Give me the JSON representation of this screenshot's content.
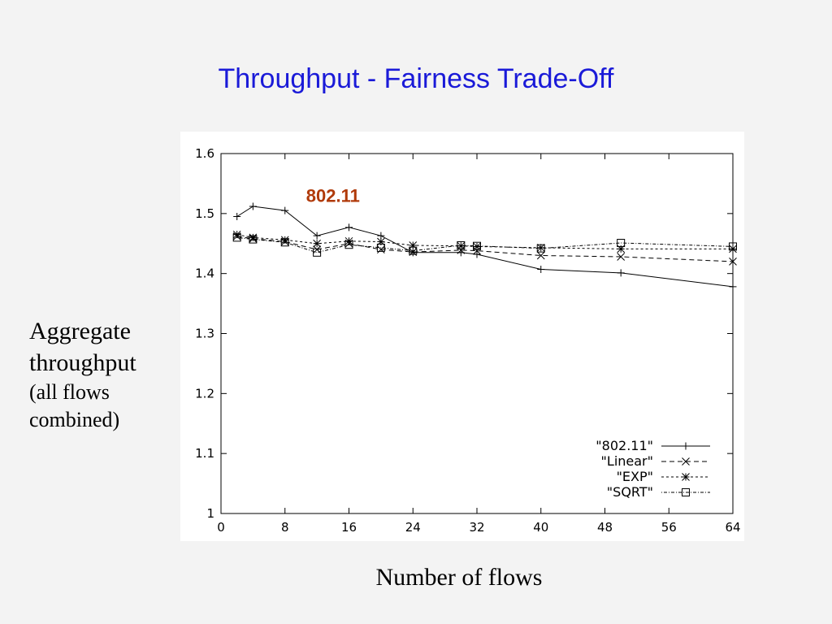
{
  "slide": {
    "title": "Throughput - Fairness Trade-Off",
    "ylabel_line1": "Aggregate",
    "ylabel_line2": "throughput",
    "ylabel_line3": "(all flows",
    "ylabel_line4": "combined)",
    "xlabel": "Number of flows"
  },
  "colors": {
    "title": "#1a1ad8",
    "annotation": "#b03a0a",
    "series": "#000000"
  },
  "chart_data": {
    "type": "line",
    "title": "",
    "xlabel": "Number of flows",
    "ylabel": "Aggregate throughput (all flows combined)",
    "xlim": [
      0,
      64
    ],
    "ylim": [
      1,
      1.6
    ],
    "xticks": [
      0,
      8,
      16,
      24,
      32,
      40,
      48,
      56,
      64
    ],
    "yticks": [
      1,
      1.1,
      1.2,
      1.3,
      1.4,
      1.5,
      1.6
    ],
    "xtick_labels": [
      "0",
      "8",
      "16",
      "24",
      "32",
      "40",
      "48",
      "56",
      "64"
    ],
    "ytick_labels": [
      "1",
      "1.1",
      "1.2",
      "1.3",
      "1.4",
      "1.5",
      "1.6"
    ],
    "grid": false,
    "legend_position": "bottom-right",
    "annotation": {
      "text": "802.11",
      "x": 14,
      "y": 1.53
    },
    "series": [
      {
        "name": "\"802.11\"",
        "marker": "plus",
        "dash": "solid",
        "x": [
          2,
          4,
          8,
          12,
          16,
          20,
          24,
          30,
          32,
          40,
          50,
          64
        ],
        "y": [
          1.495,
          1.512,
          1.505,
          1.463,
          1.477,
          1.463,
          1.435,
          1.435,
          1.432,
          1.407,
          1.401,
          1.378
        ]
      },
      {
        "name": "\"Linear\"",
        "marker": "x",
        "dash": "dashed",
        "x": [
          2,
          4,
          8,
          12,
          16,
          20,
          24,
          30,
          32,
          40,
          50,
          64
        ],
        "y": [
          1.462,
          1.458,
          1.453,
          1.44,
          1.45,
          1.44,
          1.436,
          1.439,
          1.438,
          1.43,
          1.428,
          1.42
        ]
      },
      {
        "name": "\"EXP\"",
        "marker": "star",
        "dash": "shortdash",
        "x": [
          2,
          4,
          8,
          12,
          16,
          20,
          24,
          30,
          32,
          40,
          50,
          64
        ],
        "y": [
          1.465,
          1.46,
          1.456,
          1.45,
          1.454,
          1.453,
          1.447,
          1.446,
          1.445,
          1.443,
          1.441,
          1.441
        ]
      },
      {
        "name": "\"SQRT\"",
        "marker": "square",
        "dash": "dotdash",
        "x": [
          2,
          4,
          8,
          12,
          16,
          20,
          24,
          30,
          32,
          40,
          50,
          64
        ],
        "y": [
          1.46,
          1.457,
          1.452,
          1.435,
          1.448,
          1.443,
          1.438,
          1.447,
          1.446,
          1.442,
          1.451,
          1.445
        ]
      }
    ]
  }
}
